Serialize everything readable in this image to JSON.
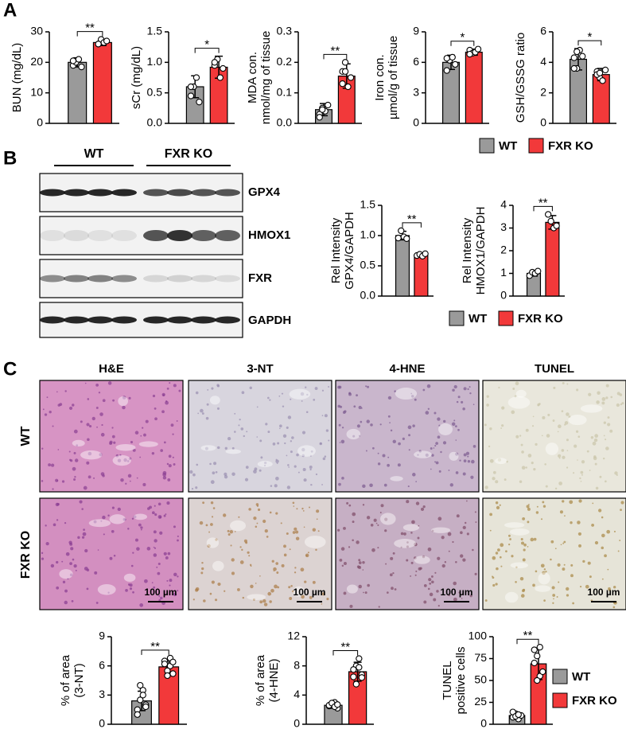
{
  "panels": [
    "A",
    "B",
    "C"
  ],
  "blot": {
    "groups": [
      "WT",
      "FXR KO"
    ],
    "proteins": [
      "GPX4",
      "HMOX1",
      "FXR",
      "GAPDH"
    ]
  },
  "histology": {
    "columns": [
      "H&E",
      "3-NT",
      "4-HNE",
      "TUNEL"
    ],
    "rows": [
      "WT",
      "FXR KO"
    ],
    "scale_bar": "100 µm"
  },
  "chart_data": [
    {
      "type": "bar",
      "ylabel": [
        "BUN (mg/dL)"
      ],
      "ylim": [
        0,
        30
      ],
      "yticks": [
        0,
        10,
        20,
        30
      ],
      "annotation": "**",
      "series": [
        {
          "color": "#9a9a9a",
          "values": [
            20
          ],
          "errors": [
            1.5
          ],
          "points": [
            19,
            20,
            21,
            18.5,
            20.5
          ]
        },
        {
          "color": "#f2393a",
          "values": [
            26.5
          ],
          "errors": [
            1
          ],
          "points": [
            26,
            27.5,
            26.5,
            27,
            26
          ]
        }
      ]
    },
    {
      "type": "bar",
      "ylabel": [
        "sCr (mg/dL)"
      ],
      "ylim": [
        0,
        1.5
      ],
      "yticks": [
        {
          "value": 0,
          "label": "0.0"
        },
        0.5,
        {
          "value": 1,
          "label": "1.0"
        },
        1.5
      ],
      "annotation": "*",
      "series": [
        {
          "color": "#9a9a9a",
          "values": [
            0.6
          ],
          "errors": [
            0.18
          ],
          "points": [
            0.45,
            0.6,
            0.75,
            0.35,
            0.6
          ]
        },
        {
          "color": "#f2393a",
          "values": [
            0.92
          ],
          "errors": [
            0.18
          ],
          "points": [
            0.95,
            1.05,
            0.75,
            0.9,
            1.0
          ]
        }
      ]
    },
    {
      "type": "bar",
      "ylabel": [
        "MDA con.",
        "nmol/mg of tissue"
      ],
      "ylim": [
        0,
        0.3
      ],
      "yticks": [
        {
          "value": 0,
          "label": "0.0"
        },
        0.1,
        0.2,
        0.3
      ],
      "annotation": "**",
      "series": [
        {
          "color": "#9a9a9a",
          "values": [
            0.045
          ],
          "errors": [
            0.02
          ],
          "points": [
            0.03,
            0.05,
            0.04,
            0.06,
            0.02,
            0.045
          ]
        },
        {
          "color": "#f2393a",
          "values": [
            0.155
          ],
          "errors": [
            0.04
          ],
          "points": [
            0.17,
            0.2,
            0.12,
            0.15,
            0.13,
            0.17
          ]
        }
      ]
    },
    {
      "type": "bar",
      "ylabel": [
        "Iron con.",
        "µmol/g of tissue"
      ],
      "ylim": [
        0,
        9
      ],
      "yticks": [
        0,
        3,
        6,
        9
      ],
      "annotation": "*",
      "series": [
        {
          "color": "#9a9a9a",
          "values": [
            6
          ],
          "errors": [
            0.7
          ],
          "points": [
            5.2,
            6.2,
            6.5,
            5.8,
            6.4
          ]
        },
        {
          "color": "#f2393a",
          "values": [
            7
          ],
          "errors": [
            0.3
          ],
          "points": [
            7.2,
            6.9,
            7.0,
            7.3,
            6.8
          ]
        }
      ]
    },
    {
      "type": "bar",
      "ylabel": [
        "GSH/GSSG ratio"
      ],
      "ylim": [
        0,
        6
      ],
      "yticks": [
        0,
        2,
        4,
        6
      ],
      "annotation": "*",
      "legend": "bottom",
      "series": [
        {
          "name": "WT",
          "color": "#9a9a9a",
          "values": [
            4.2
          ],
          "errors": [
            0.7
          ],
          "points": [
            4.3,
            3.6,
            4.8,
            4.4,
            3.6,
            4.7
          ]
        },
        {
          "name": "FXR KO",
          "color": "#f2393a",
          "values": [
            3.2
          ],
          "errors": [
            0.4
          ],
          "points": [
            3.4,
            3.0,
            2.8,
            3.5,
            3.2,
            3.3
          ]
        }
      ]
    },
    {
      "type": "bar",
      "ylabel": [
        "Rel Intensity",
        "GPX4/GAPDH"
      ],
      "ylim": [
        0,
        1.5
      ],
      "yticks": [
        {
          "value": 0,
          "label": "0.0"
        },
        0.5,
        {
          "value": 1,
          "label": "1.0"
        },
        1.5
      ],
      "annotation": "**",
      "series": [
        {
          "color": "#9a9a9a",
          "values": [
            1.0
          ],
          "errors": [
            0.07
          ],
          "points": [
            0.96,
            1.08,
            0.98,
            0.95
          ]
        },
        {
          "color": "#f2393a",
          "values": [
            0.68
          ],
          "errors": [
            0.03
          ],
          "points": [
            0.67,
            0.69,
            0.66,
            0.7
          ]
        }
      ]
    },
    {
      "type": "bar",
      "ylabel": [
        "Rel Intensity",
        "HMOX1/GAPDH"
      ],
      "ylim": [
        0,
        4
      ],
      "yticks": [
        0,
        1,
        2,
        3,
        4
      ],
      "annotation": "**",
      "legend": "bottom",
      "series": [
        {
          "name": "WT",
          "color": "#9a9a9a",
          "values": [
            1.0
          ],
          "errors": [
            0.12
          ],
          "points": [
            0.9,
            1.05,
            1.0,
            1.1
          ]
        },
        {
          "name": "FXR KO",
          "color": "#f2393a",
          "values": [
            3.25
          ],
          "errors": [
            0.3
          ],
          "points": [
            3.6,
            3.3,
            3.0,
            3.1
          ]
        }
      ]
    },
    {
      "type": "bar",
      "ylabel": [
        "% of area",
        "(3-NT)"
      ],
      "ylim": [
        0,
        9
      ],
      "yticks": [
        0,
        3,
        6,
        9
      ],
      "annotation": "**",
      "series": [
        {
          "color": "#9a9a9a",
          "values": [
            2.4
          ],
          "errors": [
            1.0
          ],
          "points": [
            1.5,
            2.5,
            3.5,
            2.0,
            1.0,
            4.0,
            3.0,
            1.8
          ]
        },
        {
          "color": "#f2393a",
          "values": [
            5.9
          ],
          "errors": [
            0.7
          ],
          "points": [
            6.5,
            5.5,
            6.8,
            5.2,
            6.2,
            5.0,
            6.0,
            6.4
          ]
        }
      ]
    },
    {
      "type": "bar",
      "ylabel": [
        "% of area",
        "(4-HNE)"
      ],
      "ylim": [
        0,
        12
      ],
      "yticks": [
        0,
        4,
        8,
        12
      ],
      "annotation": "**",
      "series": [
        {
          "color": "#9a9a9a",
          "values": [
            2.6
          ],
          "errors": [
            0.4
          ],
          "points": [
            2.5,
            2.8,
            3.0,
            2.2,
            2.6,
            2.9,
            2.4,
            2.7
          ]
        },
        {
          "color": "#f2393a",
          "values": [
            7.2
          ],
          "errors": [
            1.3
          ],
          "points": [
            6.5,
            8.0,
            9.0,
            6.8,
            7.5,
            5.5,
            7.8,
            6.4
          ]
        }
      ]
    },
    {
      "type": "bar",
      "ylabel": [
        "TUNEL",
        "positive cells"
      ],
      "ylim": [
        0,
        100
      ],
      "yticks": [
        0,
        25,
        50,
        75,
        100
      ],
      "annotation": "**",
      "legend": "right",
      "series": [
        {
          "name": "WT",
          "color": "#9a9a9a",
          "values": [
            10
          ],
          "errors": [
            3
          ],
          "points": [
            8,
            12,
            6,
            10,
            14,
            9,
            11
          ]
        },
        {
          "name": "FXR KO",
          "color": "#f2393a",
          "values": [
            69
          ],
          "errors": [
            18
          ],
          "points": [
            85,
            78,
            55,
            60,
            70,
            50,
            88
          ]
        }
      ]
    }
  ]
}
